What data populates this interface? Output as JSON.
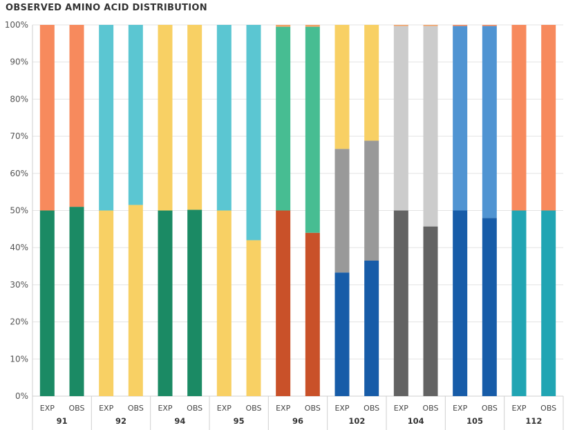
{
  "chart_data": {
    "type": "bar",
    "stacked": "percent",
    "title": "OBSERVED AMINO ACID DISTRIBUTION",
    "ylim": [
      0,
      100
    ],
    "yticks": [
      "0%",
      "10%",
      "20%",
      "30%",
      "40%",
      "50%",
      "60%",
      "70%",
      "80%",
      "90%",
      "100%"
    ],
    "grid": true,
    "legend": "none",
    "groups": [
      {
        "name": "91",
        "bars": [
          {
            "label": "EXP",
            "segments": [
              {
                "value": 50,
                "color": "#1b8a64"
              },
              {
                "value": 50,
                "color": "#f78a5d"
              }
            ]
          },
          {
            "label": "OBS",
            "segments": [
              {
                "value": 51,
                "color": "#1b8a64"
              },
              {
                "value": 49,
                "color": "#f78a5d"
              }
            ]
          }
        ]
      },
      {
        "name": "92",
        "bars": [
          {
            "label": "EXP",
            "segments": [
              {
                "value": 50,
                "color": "#f8d064"
              },
              {
                "value": 50,
                "color": "#5bc6d2"
              }
            ]
          },
          {
            "label": "OBS",
            "segments": [
              {
                "value": 51.5,
                "color": "#f8d064"
              },
              {
                "value": 48.5,
                "color": "#5bc6d2"
              }
            ]
          }
        ]
      },
      {
        "name": "94",
        "bars": [
          {
            "label": "EXP",
            "segments": [
              {
                "value": 50,
                "color": "#1b8a64"
              },
              {
                "value": 50,
                "color": "#f8d064"
              }
            ]
          },
          {
            "label": "OBS",
            "segments": [
              {
                "value": 50.2,
                "color": "#1b8a64"
              },
              {
                "value": 49.8,
                "color": "#f8d064"
              }
            ]
          }
        ]
      },
      {
        "name": "95",
        "bars": [
          {
            "label": "EXP",
            "segments": [
              {
                "value": 50,
                "color": "#f8d064"
              },
              {
                "value": 50,
                "color": "#5bc6d2"
              }
            ]
          },
          {
            "label": "OBS",
            "segments": [
              {
                "value": 42,
                "color": "#f8d064"
              },
              {
                "value": 58,
                "color": "#5bc6d2"
              }
            ]
          }
        ]
      },
      {
        "name": "96",
        "bars": [
          {
            "label": "EXP",
            "segments": [
              {
                "value": 50,
                "color": "#c95129"
              },
              {
                "value": 49.5,
                "color": "#47bd92"
              },
              {
                "value": 0.5,
                "color": "#f2a266"
              }
            ]
          },
          {
            "label": "OBS",
            "segments": [
              {
                "value": 44,
                "color": "#c95129"
              },
              {
                "value": 55.5,
                "color": "#47bd92"
              },
              {
                "value": 0.5,
                "color": "#f2a266"
              }
            ]
          }
        ]
      },
      {
        "name": "102",
        "bars": [
          {
            "label": "EXP",
            "segments": [
              {
                "value": 33.3,
                "color": "#175ca8"
              },
              {
                "value": 33.3,
                "color": "#999999"
              },
              {
                "value": 33.4,
                "color": "#f8d064"
              }
            ]
          },
          {
            "label": "OBS",
            "segments": [
              {
                "value": 36.5,
                "color": "#175ca8"
              },
              {
                "value": 32.3,
                "color": "#999999"
              },
              {
                "value": 31.2,
                "color": "#f8d064"
              }
            ]
          }
        ]
      },
      {
        "name": "104",
        "bars": [
          {
            "label": "EXP",
            "segments": [
              {
                "value": 50,
                "color": "#636363"
              },
              {
                "value": 49.7,
                "color": "#cccccc"
              },
              {
                "value": 0.3,
                "color": "#f2a266"
              }
            ]
          },
          {
            "label": "OBS",
            "segments": [
              {
                "value": 45.7,
                "color": "#636363"
              },
              {
                "value": 54,
                "color": "#cccccc"
              },
              {
                "value": 0.3,
                "color": "#f2a266"
              }
            ]
          }
        ]
      },
      {
        "name": "105",
        "bars": [
          {
            "label": "EXP",
            "segments": [
              {
                "value": 50,
                "color": "#175ca8"
              },
              {
                "value": 49.7,
                "color": "#5094d2"
              },
              {
                "value": 0.3,
                "color": "#f78a5d"
              }
            ]
          },
          {
            "label": "OBS",
            "segments": [
              {
                "value": 48,
                "color": "#175ca8"
              },
              {
                "value": 51.7,
                "color": "#5094d2"
              },
              {
                "value": 0.3,
                "color": "#f78a5d"
              }
            ]
          }
        ]
      },
      {
        "name": "112",
        "bars": [
          {
            "label": "EXP",
            "segments": [
              {
                "value": 50,
                "color": "#21a5b3"
              },
              {
                "value": 50,
                "color": "#f78a5d"
              }
            ]
          },
          {
            "label": "OBS",
            "segments": [
              {
                "value": 50,
                "color": "#21a5b3"
              },
              {
                "value": 50,
                "color": "#f78a5d"
              }
            ]
          }
        ]
      }
    ]
  }
}
